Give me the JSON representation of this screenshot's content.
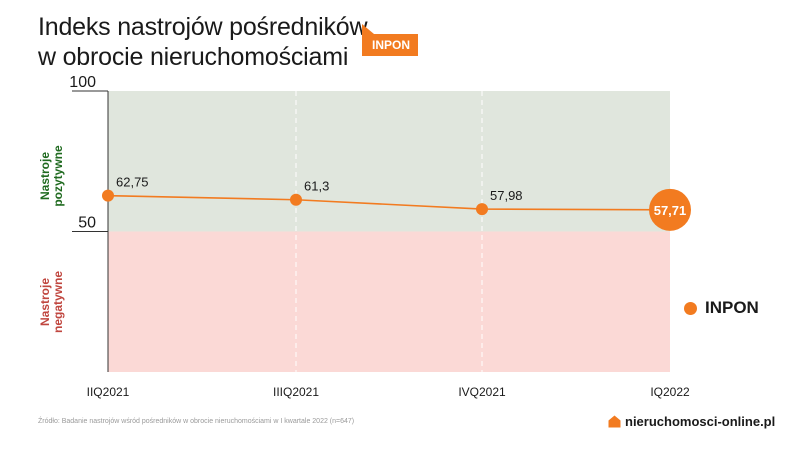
{
  "header": {
    "title_line1": "Indeks nastrojów pośredników",
    "title_line2": "w obrocie nieruchomościami",
    "badge": "INPON"
  },
  "zones": {
    "positive_label_1": "Nastroje",
    "positive_label_2": "pozytywne",
    "negative_label_1": "Nastroje",
    "negative_label_2": "negatywne"
  },
  "legend": {
    "label": "INPON"
  },
  "footer": {
    "source": "Źródło: Badanie nastrojów wśród pośredników w obrocie nieruchomościami w I kwartale 2022 (n=647)",
    "logo": "nieruchomosci-online.pl"
  },
  "colors": {
    "accent": "#f27b20",
    "positive_zone": "#e0e6dd",
    "negative_zone": "#fbd9d6",
    "positive_text": "#1f6a1f",
    "negative_text": "#c0463f"
  },
  "chart_data": {
    "type": "line",
    "categories": [
      "IIQ2021",
      "IIIQ2021",
      "IVQ2021",
      "IQ2022"
    ],
    "series": [
      {
        "name": "INPON",
        "values": [
          62.75,
          61.3,
          57.98,
          57.71
        ]
      }
    ],
    "data_labels": [
      "62,75",
      "61,3",
      "57,98",
      "57,71"
    ],
    "ytick_labels": [
      "100",
      "50"
    ],
    "yticks": [
      100,
      50
    ],
    "ylim": [
      0,
      100
    ],
    "bands": [
      {
        "from": 50,
        "to": 100,
        "meaning": "positive"
      },
      {
        "from": 0,
        "to": 50,
        "meaning": "negative"
      }
    ],
    "legend_position": "right",
    "highlight_last_point": true
  }
}
